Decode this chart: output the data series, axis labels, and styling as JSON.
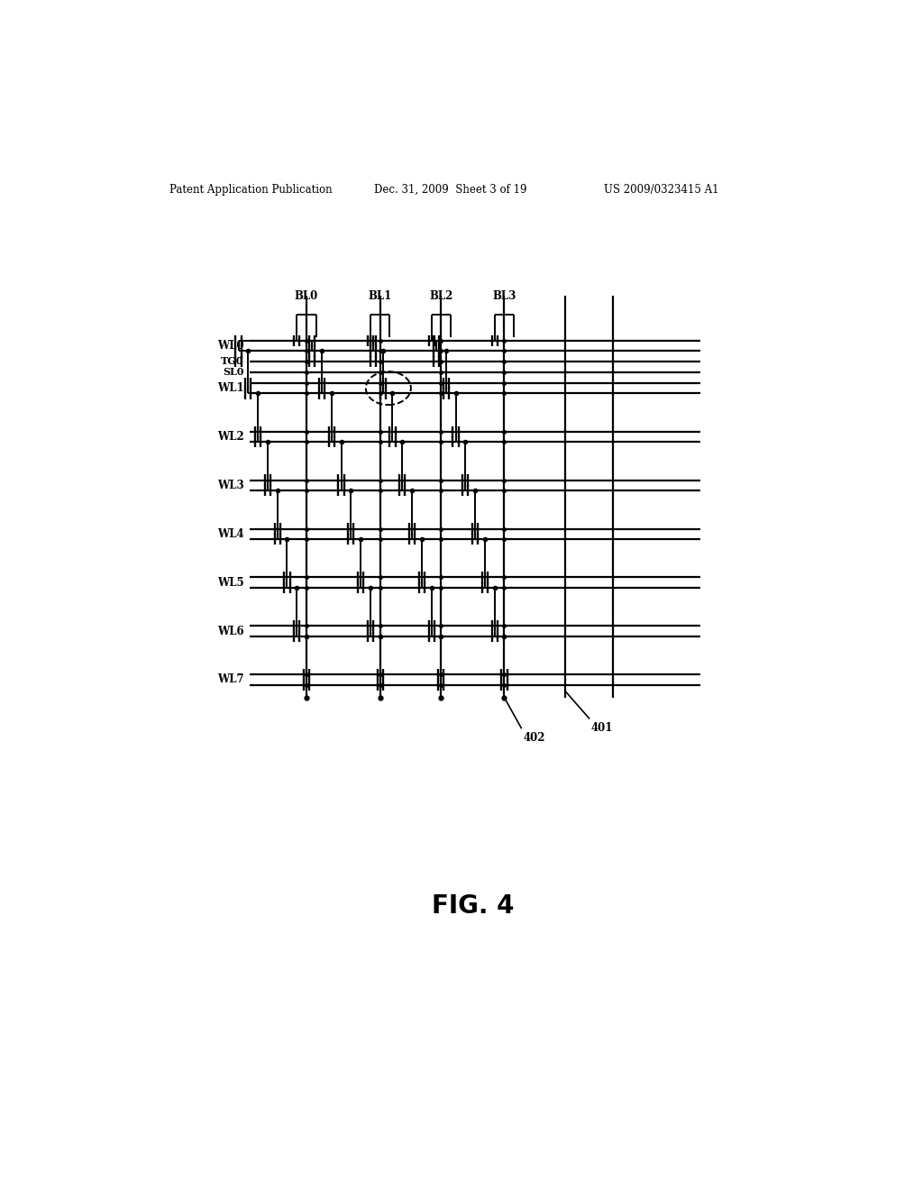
{
  "header_left": "Patent Application Publication",
  "header_mid": "Dec. 31, 2009  Sheet 3 of 19",
  "header_right": "US 2009/0323415 A1",
  "fig_label": "FIG. 4",
  "wl_labels": [
    "WL0",
    "WL1",
    "WL2",
    "WL3",
    "WL4",
    "WL5",
    "WL6",
    "WL7"
  ],
  "bl_labels": [
    "BL0",
    "BL1",
    "BL2",
    "BL3"
  ],
  "tg_label": "TG0",
  "sl_label": "SL0",
  "ref_401": "401",
  "ref_402": "402",
  "bg_color": "#ffffff",
  "lw_main": 1.5,
  "lw_cell": 1.3
}
